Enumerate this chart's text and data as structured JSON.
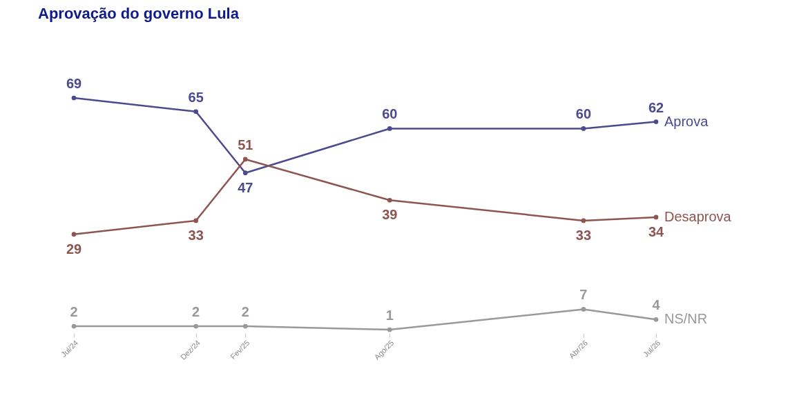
{
  "chart_data": {
    "type": "line",
    "title": "Aprovação do governo Lula",
    "x": [
      "2024-07",
      "2024-12",
      "2025-02",
      "2025-08",
      "2026-04",
      "2026-07"
    ],
    "xlim": [
      "2024-07",
      "2026-07"
    ],
    "xticks": [
      {
        "value": "2024-07",
        "label": "Jul/24"
      },
      {
        "value": "2024-12",
        "label": "Dez/24"
      },
      {
        "value": "2025-02",
        "label": "Fev/25"
      },
      {
        "value": "2025-08",
        "label": "Ago/25"
      },
      {
        "value": "2026-04",
        "label": "Abr/26"
      },
      {
        "value": "2026-07",
        "label": "Jul/26"
      }
    ],
    "series": [
      {
        "name": "Aprova",
        "color": "#4b4a8f",
        "values": [
          69,
          65,
          47,
          60,
          60,
          62
        ]
      },
      {
        "name": "Desaprova",
        "color": "#8e5450",
        "values": [
          29,
          33,
          51,
          39,
          33,
          34
        ]
      },
      {
        "name": "NS/NR",
        "color": "#999999",
        "values": [
          2,
          2,
          2,
          1,
          7,
          4
        ]
      }
    ],
    "data_labels": true,
    "marker": "circle",
    "line_style": "solid",
    "legend": false,
    "grid": false,
    "tick_labels": "x"
  }
}
